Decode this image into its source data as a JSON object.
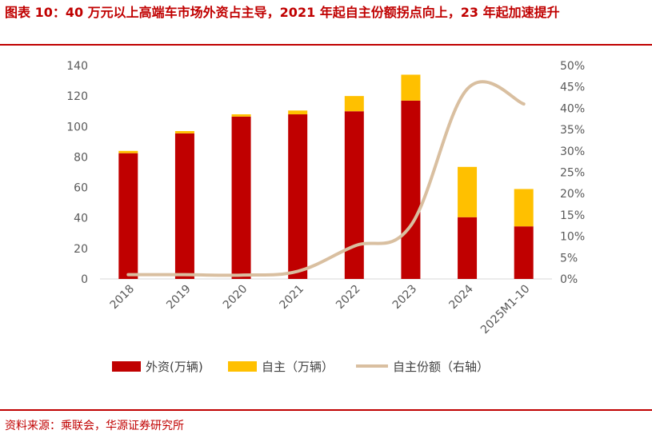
{
  "header": {
    "title": "图表 10：40 万元以上高端车市场外资占主导，2021 年起自主份额拐点向上，23 年起加速提升"
  },
  "footer": {
    "source": "资料来源：乘联会，华源证券研究所"
  },
  "colors": {
    "foreign": "#c00000",
    "domestic": "#ffc000",
    "share_line": "#d9bfa0",
    "title": "#c00000"
  },
  "chart_data": {
    "type": "bar",
    "stacked": true,
    "title": "",
    "xlabel": "",
    "ylabel": "",
    "categories": [
      "2018",
      "2019",
      "2020",
      "2021",
      "2022",
      "2023",
      "2024",
      "2025M1-10"
    ],
    "series": [
      {
        "name": "外资(万辆)",
        "kind": "bar",
        "axis": "left",
        "values": [
          82.5,
          95.5,
          106.5,
          108,
          110,
          117,
          40.5,
          34.5
        ]
      },
      {
        "name": "自主（万辆）",
        "kind": "bar",
        "axis": "left",
        "values": [
          1.5,
          1.5,
          1.5,
          2.5,
          10,
          17,
          33,
          24.5
        ]
      },
      {
        "name": "自主份额（右轴）",
        "kind": "line",
        "axis": "right",
        "values": [
          1.0,
          1.0,
          0.9,
          1.8,
          7.7,
          12.5,
          44.5,
          41.0
        ]
      }
    ],
    "ylim": [
      0,
      140
    ],
    "yticks": [
      "0",
      "20",
      "40",
      "60",
      "80",
      "100",
      "120",
      "140"
    ],
    "y2lim": [
      0,
      50
    ],
    "y2ticks": [
      "0%",
      "5%",
      "10%",
      "15%",
      "20%",
      "25%",
      "30%",
      "35%",
      "40%",
      "45%",
      "50%"
    ],
    "grid": false,
    "legend": "bottom"
  }
}
